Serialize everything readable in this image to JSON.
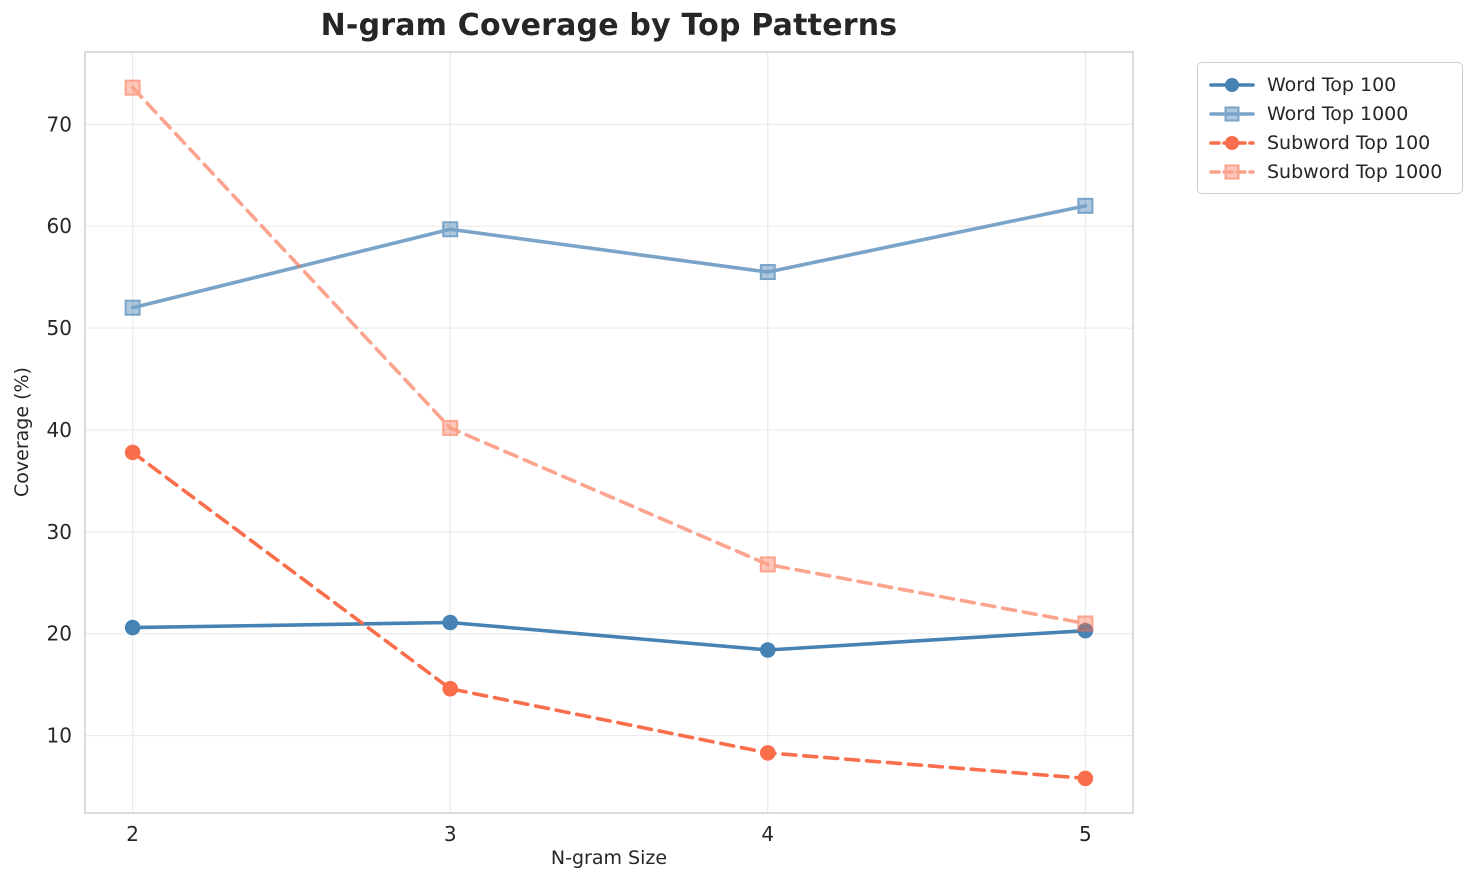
{
  "chart_data": {
    "type": "line",
    "title": "N-gram Coverage by Top Patterns",
    "xlabel": "N-gram Size",
    "ylabel": "Coverage (%)",
    "x": [
      2,
      3,
      4,
      5
    ],
    "series": [
      {
        "name": "Word Top 100",
        "values": [
          20.6,
          21.1,
          18.4,
          20.3
        ],
        "color": "#4682B4",
        "opacity": 1.0,
        "line": "solid",
        "marker": "circle"
      },
      {
        "name": "Word Top 1000",
        "values": [
          52.0,
          59.7,
          55.5,
          62.0
        ],
        "color": "#4682B4",
        "opacity": 0.72,
        "line": "solid",
        "marker": "square"
      },
      {
        "name": "Subword Top 100",
        "values": [
          37.8,
          14.6,
          8.3,
          5.8
        ],
        "color": "#FA6E4C",
        "opacity": 1.0,
        "line": "dashed",
        "marker": "circle"
      },
      {
        "name": "Subword Top 1000",
        "values": [
          73.6,
          40.2,
          26.8,
          21.0
        ],
        "color": "#FA6E4C",
        "opacity": 0.63,
        "line": "dashed",
        "marker": "square"
      }
    ],
    "xticks": [
      2,
      3,
      4,
      5
    ],
    "yticks": [
      10,
      20,
      30,
      40,
      50,
      60,
      70
    ],
    "xlim": [
      1.85,
      5.15
    ],
    "ylim": [
      2.4,
      77.1
    ],
    "grid": true,
    "legend_position": "outside-top-right"
  },
  "style": {
    "grid_color": "#ebebeb",
    "spine_color": "#cccccc",
    "text_color": "#262626",
    "background": "#ffffff"
  }
}
